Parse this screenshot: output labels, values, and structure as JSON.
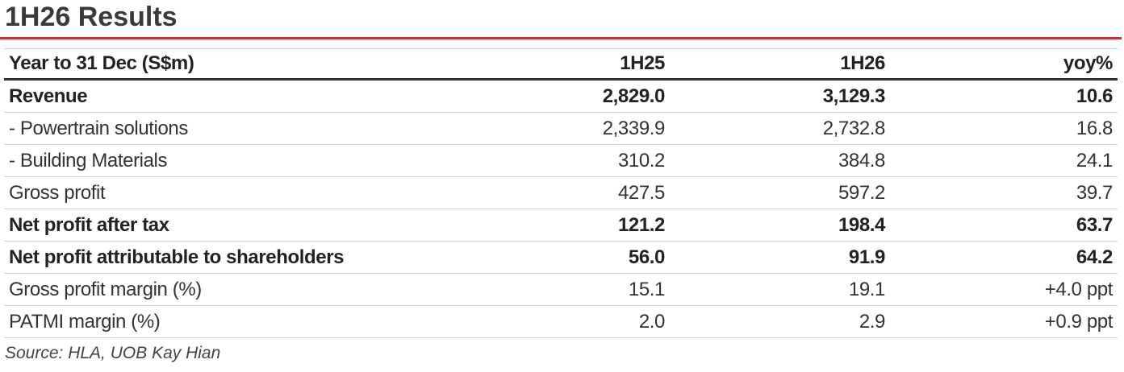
{
  "header": {
    "title": "1H26 Results"
  },
  "table": {
    "columns": [
      "Year to 31 Dec (S$m)",
      "1H25",
      "1H26",
      "yoy%"
    ],
    "rows": [
      [
        "Revenue",
        "2,829.0",
        "3,129.3",
        "10.6"
      ],
      [
        "- Powertrain solutions",
        "2,339.9",
        "2,732.8",
        "16.8"
      ],
      [
        "- Building Materials",
        "310.2",
        "384.8",
        "24.1"
      ],
      [
        "Gross profit",
        "427.5",
        "597.2",
        "39.7"
      ],
      [
        "Net profit after tax",
        "121.2",
        "198.4",
        "63.7"
      ],
      [
        "Net profit attributable to shareholders",
        "56.0",
        "91.9",
        "64.2"
      ],
      [
        "Gross profit margin (%)",
        "15.1",
        "19.1",
        "+4.0 ppt"
      ],
      [
        "PATMI margin (%)",
        "2.0",
        "2.9",
        "+0.9 ppt"
      ]
    ]
  },
  "footer": {
    "source": "Source: HLA, UOB Kay Hian"
  }
}
